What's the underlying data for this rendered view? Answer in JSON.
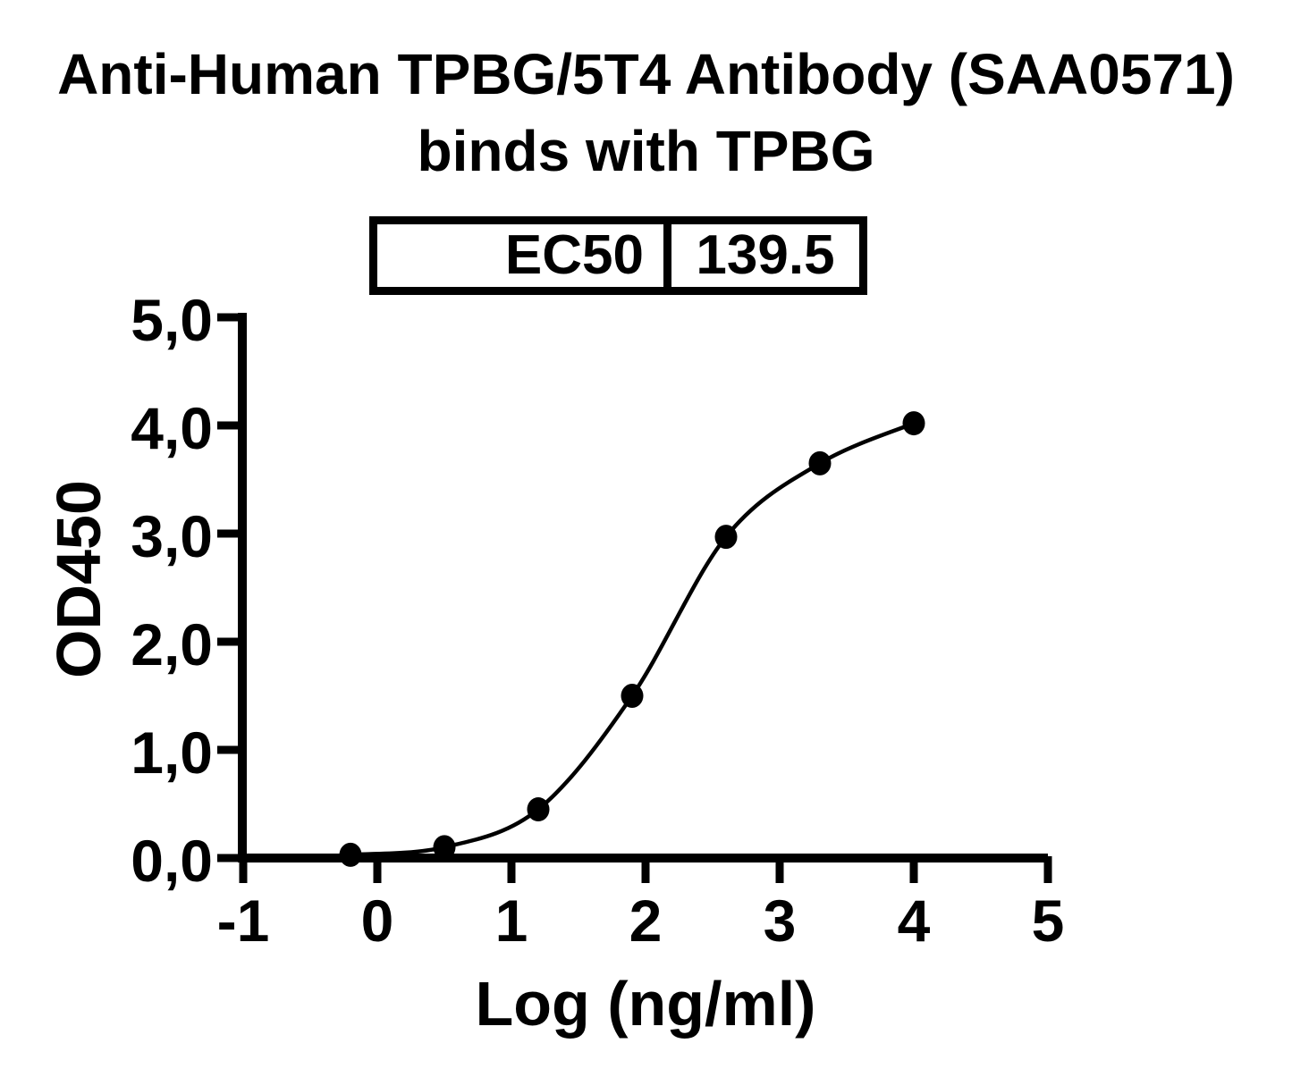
{
  "title": {
    "line1": "Anti-Human TPBG/5T4 Antibody (SAA0571)",
    "line2": "binds with TPBG"
  },
  "ec50": {
    "label": "EC50",
    "value": "139.5"
  },
  "chart_data": {
    "type": "scatter",
    "title": "Anti-Human TPBG/5T4 Antibody (SAA0571) binds with TPBG",
    "xlabel": "Log (ng/ml)",
    "ylabel": "OD450",
    "x": [
      -0.2,
      0.5,
      1.2,
      1.9,
      2.6,
      3.3,
      4.0
    ],
    "y": [
      0.03,
      0.1,
      0.45,
      1.5,
      2.97,
      3.65,
      4.02
    ],
    "curve": "sigmoidal 4PL fit through points",
    "ec50_value": 139.5,
    "xlim": [
      -1,
      5
    ],
    "ylim": [
      0,
      5
    ],
    "xticks": [
      {
        "value": -1,
        "label": "-1"
      },
      {
        "value": 0,
        "label": "0"
      },
      {
        "value": 1,
        "label": "1"
      },
      {
        "value": 2,
        "label": "2"
      },
      {
        "value": 3,
        "label": "3"
      },
      {
        "value": 4,
        "label": "4"
      },
      {
        "value": 5,
        "label": "5"
      }
    ],
    "yticks": [
      {
        "value": 0,
        "label": "0,0"
      },
      {
        "value": 1,
        "label": "1,0"
      },
      {
        "value": 2,
        "label": "2,0"
      },
      {
        "value": 3,
        "label": "3,0"
      },
      {
        "value": 4,
        "label": "4,0"
      },
      {
        "value": 5,
        "label": "5,0"
      }
    ],
    "grid": false,
    "legend": null,
    "colors": {
      "ink": "#000000",
      "background": "#ffffff"
    }
  }
}
